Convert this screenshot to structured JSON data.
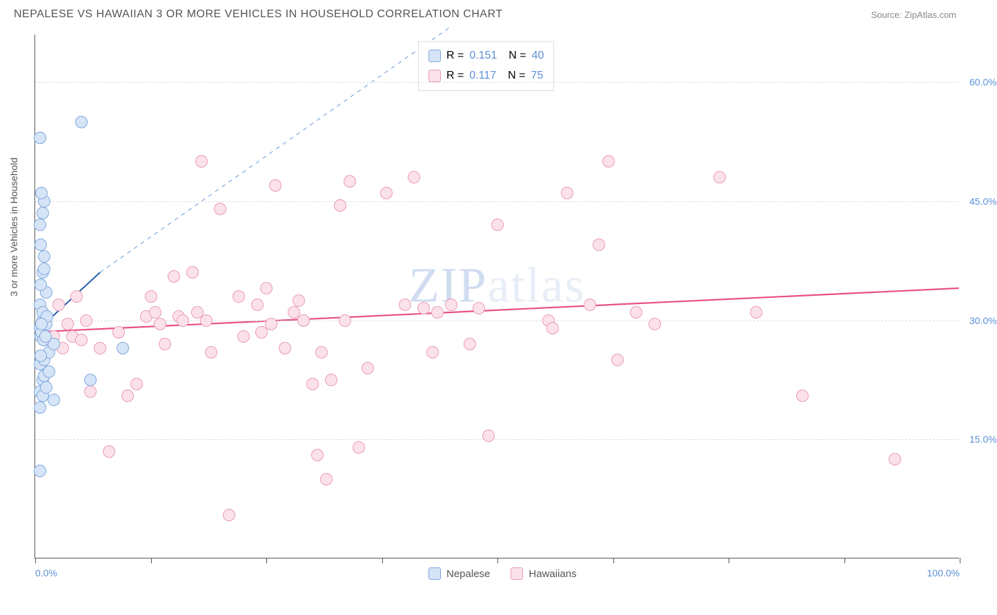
{
  "header": {
    "title": "NEPALESE VS HAWAIIAN 3 OR MORE VEHICLES IN HOUSEHOLD CORRELATION CHART",
    "source": "Source: ZipAtlas.com"
  },
  "chart": {
    "type": "scatter",
    "y_axis_label": "3 or more Vehicles in Household",
    "background_color": "#ffffff",
    "grid_color": "#dddddd",
    "axis_color": "#555555",
    "xlim": [
      0,
      100
    ],
    "ylim": [
      0,
      66
    ],
    "y_ticks": [
      15,
      30,
      45,
      60
    ],
    "y_tick_labels": [
      "15.0%",
      "30.0%",
      "45.0%",
      "60.0%"
    ],
    "x_ticks": [
      0,
      12.5,
      25,
      37.5,
      50,
      62.5,
      75,
      87.5,
      100
    ],
    "x_tick_labels": {
      "0": "0.0%",
      "100": "100.0%"
    },
    "tick_label_color": "#5b8fd8",
    "axis_label_color": "#555555",
    "label_fontsize": 14,
    "watermark": "ZIPatlas",
    "series": [
      {
        "name": "Nepalese",
        "fill_color": "#d6e4f7",
        "stroke_color": "#7fa8de",
        "marker_radius": 9,
        "R": "0.151",
        "N": "40",
        "trend_solid": {
          "x1": 0.5,
          "y1": 29,
          "x2": 7,
          "y2": 36,
          "color": "#2a5db0",
          "width": 2
        },
        "trend_dashed": {
          "x1": 7,
          "y1": 36,
          "x2": 45,
          "y2": 67,
          "color": "#7fa8de",
          "width": 1.2
        },
        "points": [
          [
            0.5,
            29
          ],
          [
            0.8,
            30
          ],
          [
            0.6,
            28
          ],
          [
            1,
            27.5
          ],
          [
            0.7,
            28.5
          ],
          [
            1.2,
            29.5
          ],
          [
            0.5,
            32
          ],
          [
            0.8,
            36
          ],
          [
            1,
            38
          ],
          [
            0.6,
            39.5
          ],
          [
            0.5,
            42
          ],
          [
            0.8,
            43.5
          ],
          [
            1,
            45
          ],
          [
            0.7,
            46
          ],
          [
            0.5,
            53
          ],
          [
            5,
            55
          ],
          [
            0.5,
            11
          ],
          [
            2,
            20
          ],
          [
            0.5,
            21
          ],
          [
            0.8,
            22.5
          ],
          [
            1,
            23
          ],
          [
            1.5,
            23.5
          ],
          [
            0.5,
            24.5
          ],
          [
            1,
            25
          ],
          [
            1.5,
            26
          ],
          [
            6,
            22.5
          ],
          [
            9.5,
            26.5
          ],
          [
            2,
            27
          ],
          [
            1.2,
            33.5
          ],
          [
            0.6,
            34.5
          ],
          [
            1,
            36.5
          ],
          [
            0.8,
            31
          ],
          [
            1.3,
            30.5
          ],
          [
            0.5,
            19
          ],
          [
            0.8,
            20.5
          ],
          [
            1.2,
            21.5
          ],
          [
            0.6,
            25.5
          ],
          [
            0.9,
            27.5
          ],
          [
            1.1,
            28
          ],
          [
            0.7,
            29.5
          ]
        ]
      },
      {
        "name": "Hawaiians",
        "fill_color": "#fbe1ea",
        "stroke_color": "#ea9ab7",
        "marker_radius": 9,
        "R": "0.117",
        "N": "75",
        "trend_solid": {
          "x1": 0.5,
          "y1": 28.5,
          "x2": 100,
          "y2": 34,
          "color": "#e84f85",
          "width": 2.2
        },
        "points": [
          [
            1,
            27.5
          ],
          [
            2,
            28
          ],
          [
            3,
            26.5
          ],
          [
            4,
            28
          ],
          [
            5,
            27.5
          ],
          [
            6,
            21
          ],
          [
            7,
            26.5
          ],
          [
            8,
            13.5
          ],
          [
            9,
            28.5
          ],
          [
            10,
            20.5
          ],
          [
            11,
            22
          ],
          [
            12,
            30.5
          ],
          [
            13,
            31
          ],
          [
            14,
            27
          ],
          [
            15,
            35.5
          ],
          [
            15.5,
            30.5
          ],
          [
            16,
            30
          ],
          [
            17,
            36
          ],
          [
            17.5,
            31
          ],
          [
            18,
            50
          ],
          [
            18.5,
            30
          ],
          [
            19,
            26
          ],
          [
            20,
            44
          ],
          [
            21,
            5.5
          ],
          [
            22,
            33
          ],
          [
            24,
            32
          ],
          [
            24.5,
            28.5
          ],
          [
            25,
            34
          ],
          [
            25.5,
            29.5
          ],
          [
            26,
            47
          ],
          [
            27,
            26.5
          ],
          [
            28,
            31
          ],
          [
            28.5,
            32.5
          ],
          [
            29,
            30
          ],
          [
            30,
            22
          ],
          [
            30.5,
            13
          ],
          [
            31,
            26
          ],
          [
            31.5,
            10
          ],
          [
            32,
            22.5
          ],
          [
            33,
            44.5
          ],
          [
            33.5,
            30
          ],
          [
            34,
            47.5
          ],
          [
            35,
            14
          ],
          [
            38,
            46
          ],
          [
            40,
            32
          ],
          [
            41,
            48
          ],
          [
            42,
            31.5
          ],
          [
            43,
            26
          ],
          [
            43.5,
            31
          ],
          [
            45,
            32
          ],
          [
            47,
            27
          ],
          [
            48,
            31.5
          ],
          [
            49,
            15.5
          ],
          [
            50,
            42
          ],
          [
            55.5,
            30
          ],
          [
            56,
            29
          ],
          [
            57.5,
            46
          ],
          [
            60,
            32
          ],
          [
            61,
            39.5
          ],
          [
            62,
            50
          ],
          [
            63,
            25
          ],
          [
            65,
            31
          ],
          [
            67,
            29.5
          ],
          [
            74,
            48
          ],
          [
            78,
            31
          ],
          [
            83,
            20.5
          ],
          [
            93,
            12.5
          ],
          [
            2.5,
            32
          ],
          [
            3.5,
            29.5
          ],
          [
            4.5,
            33
          ],
          [
            5.5,
            30
          ],
          [
            12.5,
            33
          ],
          [
            13.5,
            29.5
          ],
          [
            22.5,
            28
          ],
          [
            36,
            24
          ]
        ]
      }
    ],
    "stats_box": {
      "border_color": "#dddddd"
    },
    "legend": {
      "items": [
        "Nepalese",
        "Hawaiians"
      ]
    }
  }
}
